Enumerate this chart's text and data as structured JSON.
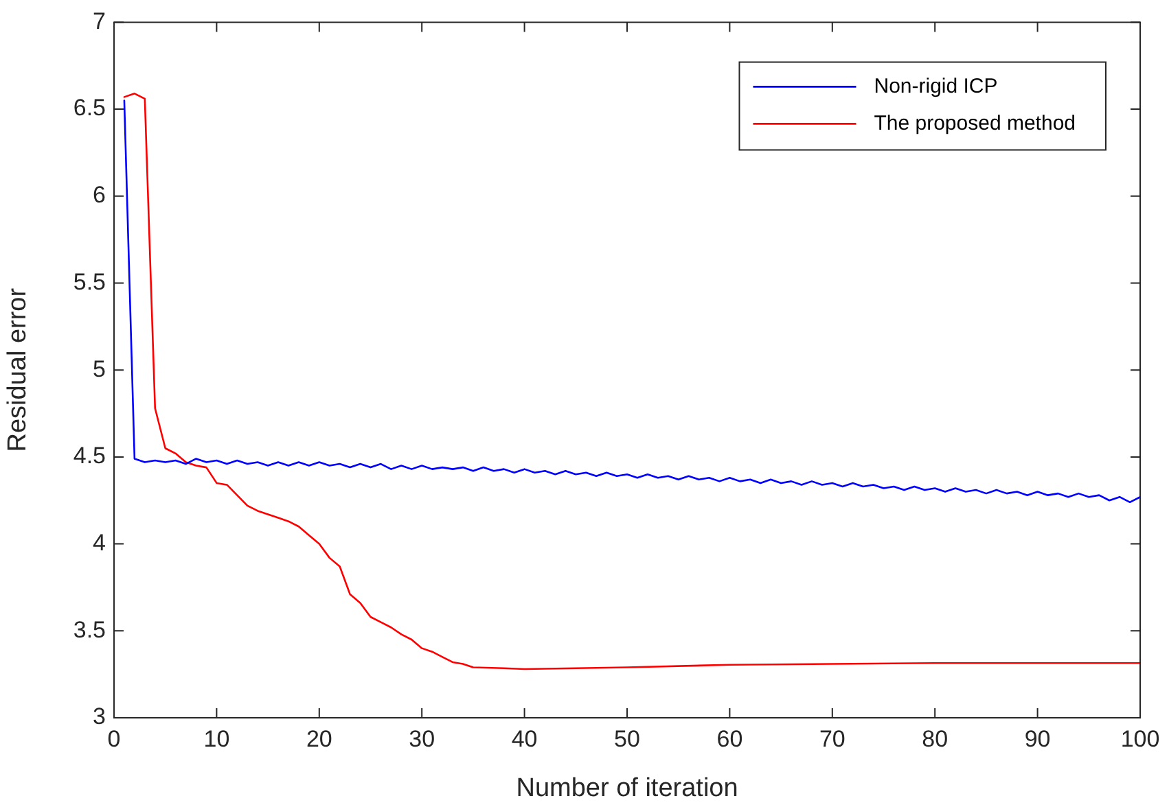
{
  "chart_data": {
    "type": "line",
    "xlabel": "Number of iteration",
    "ylabel": "Residual error",
    "xlim": [
      0,
      100
    ],
    "xticks": [
      0,
      10,
      20,
      30,
      40,
      50,
      60,
      70,
      80,
      90,
      100
    ],
    "ylim": [
      3,
      7
    ],
    "yticks": [
      3,
      3.5,
      4,
      4.5,
      5,
      5.5,
      6,
      6.5,
      7
    ],
    "grid": false,
    "legend": "top right",
    "marker": "none",
    "line_style": "solid",
    "series": [
      {
        "name": "Non-rigid ICP",
        "color": "#0000ff",
        "x": [
          1,
          2,
          3,
          4,
          5,
          6,
          7,
          8,
          9,
          10,
          11,
          12,
          13,
          14,
          15,
          16,
          17,
          18,
          19,
          20,
          21,
          22,
          23,
          24,
          25,
          26,
          27,
          28,
          29,
          30,
          31,
          32,
          33,
          34,
          35,
          36,
          37,
          38,
          39,
          40,
          41,
          42,
          43,
          44,
          45,
          46,
          47,
          48,
          49,
          50,
          51,
          52,
          53,
          54,
          55,
          56,
          57,
          58,
          59,
          60,
          61,
          62,
          63,
          64,
          65,
          66,
          67,
          68,
          69,
          70,
          71,
          72,
          73,
          74,
          75,
          76,
          77,
          78,
          79,
          80,
          81,
          82,
          83,
          84,
          85,
          86,
          87,
          88,
          89,
          90,
          91,
          92,
          93,
          94,
          95,
          96,
          97,
          98,
          99,
          100
        ],
        "values": [
          6.55,
          4.49,
          4.47,
          4.48,
          4.47,
          4.48,
          4.46,
          4.49,
          4.47,
          4.48,
          4.46,
          4.48,
          4.46,
          4.47,
          4.45,
          4.47,
          4.45,
          4.47,
          4.45,
          4.47,
          4.45,
          4.46,
          4.44,
          4.46,
          4.44,
          4.46,
          4.43,
          4.45,
          4.43,
          4.45,
          4.43,
          4.44,
          4.43,
          4.44,
          4.42,
          4.44,
          4.42,
          4.43,
          4.41,
          4.43,
          4.41,
          4.42,
          4.4,
          4.42,
          4.4,
          4.41,
          4.39,
          4.41,
          4.39,
          4.4,
          4.38,
          4.4,
          4.38,
          4.39,
          4.37,
          4.39,
          4.37,
          4.38,
          4.36,
          4.38,
          4.36,
          4.37,
          4.35,
          4.37,
          4.35,
          4.36,
          4.34,
          4.36,
          4.34,
          4.35,
          4.33,
          4.35,
          4.33,
          4.34,
          4.32,
          4.33,
          4.31,
          4.33,
          4.31,
          4.32,
          4.3,
          4.32,
          4.3,
          4.31,
          4.29,
          4.31,
          4.29,
          4.3,
          4.28,
          4.3,
          4.28,
          4.29,
          4.27,
          4.29,
          4.27,
          4.28,
          4.25,
          4.27,
          4.24,
          4.27
        ]
      },
      {
        "name": "The proposed method",
        "color": "#ff0000",
        "x": [
          1,
          2,
          3,
          4,
          5,
          6,
          7,
          8,
          9,
          10,
          11,
          12,
          13,
          14,
          15,
          16,
          17,
          18,
          19,
          20,
          21,
          22,
          23,
          24,
          25,
          26,
          27,
          28,
          29,
          30,
          31,
          32,
          33,
          34,
          35,
          38,
          40,
          45,
          50,
          60,
          70,
          80,
          100
        ],
        "values": [
          6.57,
          6.59,
          6.56,
          4.78,
          4.55,
          4.52,
          4.47,
          4.45,
          4.44,
          4.35,
          4.34,
          4.28,
          4.22,
          4.19,
          4.17,
          4.15,
          4.13,
          4.1,
          4.05,
          4.0,
          3.92,
          3.87,
          3.71,
          3.66,
          3.58,
          3.55,
          3.52,
          3.48,
          3.45,
          3.4,
          3.38,
          3.35,
          3.32,
          3.31,
          3.29,
          3.285,
          3.28,
          3.285,
          3.29,
          3.305,
          3.31,
          3.315,
          3.315
        ]
      }
    ]
  }
}
